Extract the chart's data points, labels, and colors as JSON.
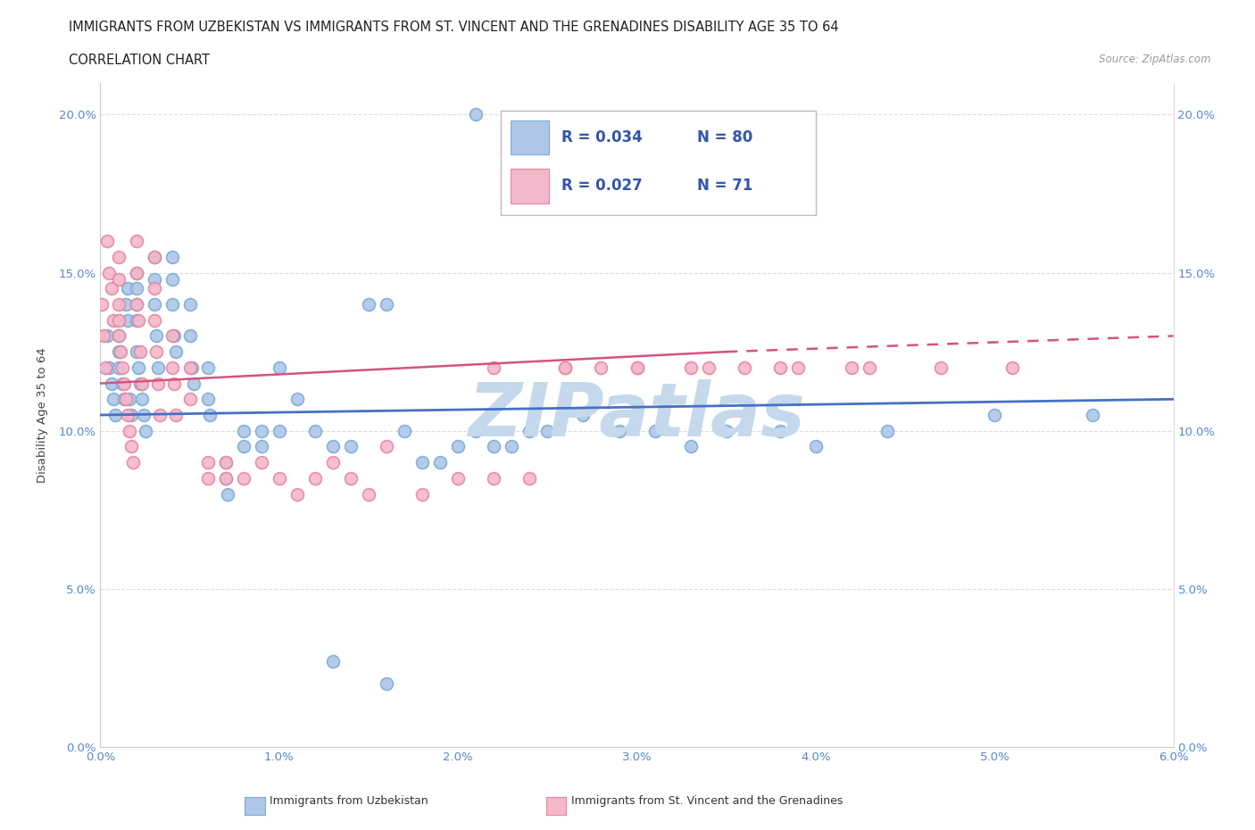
{
  "title_line1": "IMMIGRANTS FROM UZBEKISTAN VS IMMIGRANTS FROM ST. VINCENT AND THE GRENADINES DISABILITY AGE 35 TO 64",
  "title_line2": "CORRELATION CHART",
  "source_text": "Source: ZipAtlas.com",
  "ylabel": "Disability Age 35 to 64",
  "xlim": [
    0.0,
    0.06
  ],
  "ylim": [
    0.0,
    0.21
  ],
  "xticks": [
    0.0,
    0.01,
    0.02,
    0.03,
    0.04,
    0.05,
    0.06
  ],
  "xticklabels": [
    "0.0%",
    "1.0%",
    "2.0%",
    "3.0%",
    "4.0%",
    "5.0%",
    "6.0%"
  ],
  "yticks": [
    0.0,
    0.05,
    0.1,
    0.15,
    0.2
  ],
  "yticklabels": [
    "0.0%",
    "5.0%",
    "10.0%",
    "15.0%",
    "20.0%"
  ],
  "series1_name": "Immigrants from Uzbekistan",
  "series1_color": "#aec6e8",
  "series1_edge_color": "#7aadd4",
  "series1_line_color": "#4472c4",
  "series2_name": "Immigrants from St. Vincent and the Grenadines",
  "series2_color": "#f4b8cb",
  "series2_edge_color": "#e8859e",
  "series2_line_color": "#d4547a",
  "background_color": "#ffffff",
  "grid_color": "#e8e8e8",
  "watermark_text": "ZIPatlas",
  "watermark_color": "#c5d8ec",
  "series1_x": [
    0.0004,
    0.0005,
    0.0006,
    0.0007,
    0.0008,
    0.001,
    0.001,
    0.001,
    0.0012,
    0.0013,
    0.0014,
    0.0015,
    0.0015,
    0.0016,
    0.0017,
    0.002,
    0.002,
    0.002,
    0.002,
    0.002,
    0.0021,
    0.0022,
    0.0023,
    0.0024,
    0.0025,
    0.003,
    0.003,
    0.003,
    0.0031,
    0.0032,
    0.004,
    0.004,
    0.004,
    0.0041,
    0.0042,
    0.005,
    0.005,
    0.0051,
    0.0052,
    0.006,
    0.006,
    0.0061,
    0.007,
    0.007,
    0.0071,
    0.008,
    0.008,
    0.009,
    0.009,
    0.01,
    0.01,
    0.011,
    0.012,
    0.013,
    0.014,
    0.015,
    0.016,
    0.017,
    0.018,
    0.019,
    0.02,
    0.021,
    0.022,
    0.023,
    0.024,
    0.025,
    0.027,
    0.029,
    0.031,
    0.033,
    0.035,
    0.038,
    0.04,
    0.044,
    0.05,
    0.0555,
    0.013,
    0.016,
    0.021
  ],
  "series1_y": [
    0.13,
    0.12,
    0.115,
    0.11,
    0.105,
    0.13,
    0.125,
    0.12,
    0.115,
    0.11,
    0.14,
    0.135,
    0.145,
    0.11,
    0.105,
    0.15,
    0.145,
    0.14,
    0.135,
    0.125,
    0.12,
    0.115,
    0.11,
    0.105,
    0.1,
    0.155,
    0.148,
    0.14,
    0.13,
    0.12,
    0.155,
    0.148,
    0.14,
    0.13,
    0.125,
    0.14,
    0.13,
    0.12,
    0.115,
    0.12,
    0.11,
    0.105,
    0.09,
    0.085,
    0.08,
    0.1,
    0.095,
    0.1,
    0.095,
    0.12,
    0.1,
    0.11,
    0.1,
    0.095,
    0.095,
    0.14,
    0.14,
    0.1,
    0.09,
    0.09,
    0.095,
    0.1,
    0.095,
    0.095,
    0.1,
    0.1,
    0.105,
    0.1,
    0.1,
    0.095,
    0.1,
    0.1,
    0.095,
    0.1,
    0.105,
    0.105,
    0.027,
    0.02,
    0.2
  ],
  "series2_x": [
    0.0001,
    0.0002,
    0.0003,
    0.0004,
    0.0005,
    0.0006,
    0.0007,
    0.001,
    0.001,
    0.001,
    0.001,
    0.001,
    0.0011,
    0.0012,
    0.0013,
    0.0014,
    0.0015,
    0.0016,
    0.0017,
    0.0018,
    0.002,
    0.002,
    0.002,
    0.0021,
    0.0022,
    0.0023,
    0.003,
    0.003,
    0.003,
    0.0031,
    0.0032,
    0.0033,
    0.004,
    0.004,
    0.0041,
    0.0042,
    0.005,
    0.005,
    0.006,
    0.006,
    0.007,
    0.007,
    0.008,
    0.009,
    0.01,
    0.011,
    0.012,
    0.013,
    0.014,
    0.015,
    0.016,
    0.018,
    0.02,
    0.022,
    0.024,
    0.026,
    0.028,
    0.03,
    0.033,
    0.036,
    0.039,
    0.043,
    0.047,
    0.051,
    0.022,
    0.026,
    0.03,
    0.034,
    0.038,
    0.042
  ],
  "series2_y": [
    0.14,
    0.13,
    0.12,
    0.16,
    0.15,
    0.145,
    0.135,
    0.155,
    0.148,
    0.14,
    0.135,
    0.13,
    0.125,
    0.12,
    0.115,
    0.11,
    0.105,
    0.1,
    0.095,
    0.09,
    0.16,
    0.15,
    0.14,
    0.135,
    0.125,
    0.115,
    0.155,
    0.145,
    0.135,
    0.125,
    0.115,
    0.105,
    0.13,
    0.12,
    0.115,
    0.105,
    0.12,
    0.11,
    0.09,
    0.085,
    0.09,
    0.085,
    0.085,
    0.09,
    0.085,
    0.08,
    0.085,
    0.09,
    0.085,
    0.08,
    0.095,
    0.08,
    0.085,
    0.085,
    0.085,
    0.12,
    0.12,
    0.12,
    0.12,
    0.12,
    0.12,
    0.12,
    0.12,
    0.12,
    0.12,
    0.12,
    0.12,
    0.12,
    0.12,
    0.12
  ]
}
